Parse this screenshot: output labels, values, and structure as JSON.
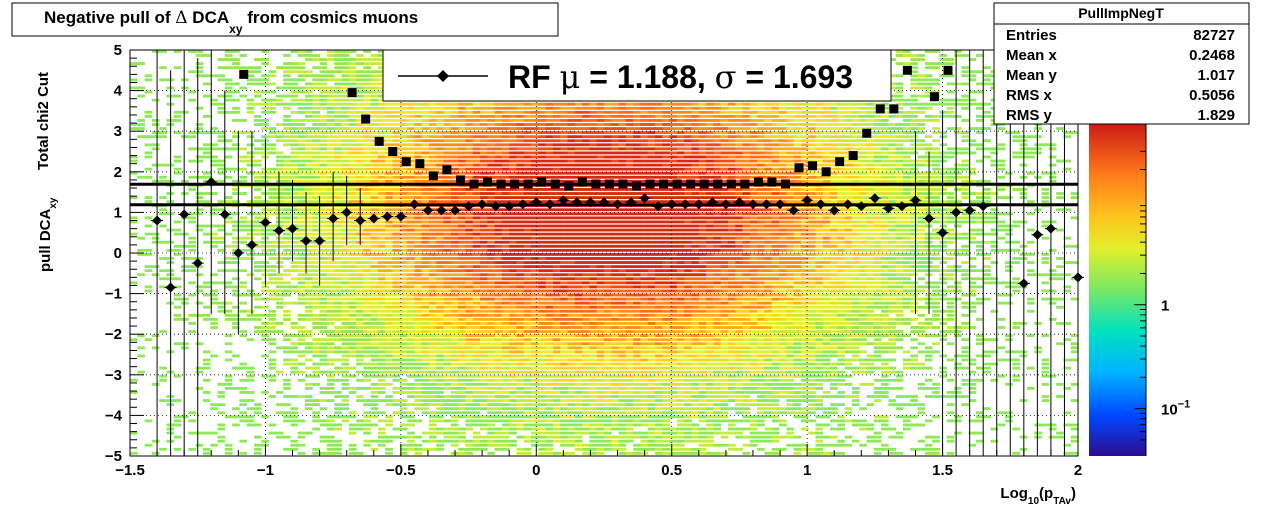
{
  "chart_data": {
    "type": "heatmap",
    "title_main": "Negative pull of ",
    "title_delta": "Δ",
    "title_dca": " DCA",
    "title_sub": "xy",
    "title_tail": " from cosmics muons",
    "xlabel_main": "Log",
    "xlabel_sub1": "10",
    "xlabel_paren": "(p",
    "xlabel_sub2": "TAv",
    "xlabel_close": ")",
    "ylabel_line1": "Total chi2 Cut",
    "ylabel_line2_main": "pull DCA",
    "ylabel_line2_sub": "xy",
    "xlim": [
      -1.5,
      2.0
    ],
    "ylim": [
      -5,
      5
    ],
    "x_ticks": [
      -1.5,
      -1,
      -0.5,
      0,
      0.5,
      1,
      1.5,
      2
    ],
    "x_tick_labels": [
      "−1.5",
      "−1",
      "−0.5",
      "0",
      "0.5",
      "1",
      "1.5",
      "2"
    ],
    "y_ticks": [
      -5,
      -4,
      -3,
      -2,
      -1,
      0,
      1,
      2,
      3,
      4,
      5
    ],
    "y_tick_labels": [
      "−5",
      "−4",
      "−3",
      "−2",
      "−1",
      "0",
      "1",
      "2",
      "3",
      "4",
      "5"
    ],
    "grid": true,
    "z_scale": "log",
    "colorbar_labels": [
      {
        "value": 1,
        "main": "1",
        "sup": ""
      },
      {
        "value": 0.1,
        "main": "10",
        "sup": "−1"
      }
    ],
    "stats_box": {
      "title": "PullImpNegT",
      "rows": [
        {
          "label": "Entries",
          "value": "82727"
        },
        {
          "label": "Mean x",
          "value": "0.2468"
        },
        {
          "label": "Mean y",
          "value": "1.017"
        },
        {
          "label": "RMS x",
          "value": "0.5056"
        },
        {
          "label": "RMS y",
          "value": "1.829"
        }
      ]
    },
    "legend": {
      "text_prefix": "RF ",
      "mu_symbol": "μ",
      "mu_text": " =  1.188, ",
      "sigma_symbol": "σ",
      "sigma_text": " =   1.693",
      "placement": "top-center"
    },
    "fit_lines": [
      {
        "label": "μ",
        "y": 1.188
      },
      {
        "label": "σ",
        "y": 1.693
      }
    ],
    "heatmap_peak": {
      "x": 0.25,
      "y": 1.0
    },
    "series": [
      {
        "marker": "diamond",
        "x": [
          -1.4,
          -1.35,
          -1.3,
          -1.25,
          -1.2,
          -1.15,
          -1.1,
          -1.05,
          -1.0,
          -0.95,
          -0.9,
          -0.85,
          -0.8,
          -0.75,
          -0.7,
          -0.65,
          -0.6,
          -0.55,
          -0.5,
          -0.45,
          -0.4,
          -0.35,
          -0.3,
          -0.25,
          -0.2,
          -0.15,
          -0.1,
          -0.05,
          0.0,
          0.05,
          0.1,
          0.15,
          0.2,
          0.25,
          0.3,
          0.35,
          0.4,
          0.45,
          0.5,
          0.55,
          0.6,
          0.65,
          0.7,
          0.75,
          0.8,
          0.85,
          0.9,
          0.95,
          1.0,
          1.05,
          1.1,
          1.15,
          1.2,
          1.25,
          1.3,
          1.35,
          1.4,
          1.45,
          1.5,
          1.55,
          1.6,
          1.65,
          1.7,
          1.75,
          1.8,
          1.85,
          1.9,
          1.95,
          2.0
        ],
        "values": [
          0.8,
          -0.85,
          0.95,
          -0.25,
          1.75,
          0.95,
          0.0,
          0.2,
          0.75,
          0.55,
          0.6,
          0.3,
          0.3,
          0.85,
          1.0,
          0.8,
          0.85,
          0.9,
          0.9,
          1.2,
          1.05,
          1.05,
          1.05,
          1.15,
          1.2,
          1.15,
          1.15,
          1.2,
          1.25,
          1.2,
          1.3,
          1.25,
          1.25,
          1.25,
          1.2,
          1.25,
          1.35,
          1.15,
          1.2,
          1.2,
          1.2,
          1.25,
          1.2,
          1.25,
          1.2,
          1.2,
          1.2,
          1.05,
          1.3,
          1.2,
          1.05,
          1.2,
          1.15,
          1.35,
          1.1,
          1.15,
          1.3,
          0.85,
          0.5,
          1.0,
          1.05,
          1.15,
          null,
          null,
          -0.75,
          0.45,
          0.6,
          null,
          -0.6
        ]
      },
      {
        "marker": "square",
        "x": [
          -1.08,
          -0.68,
          -0.63,
          -0.58,
          -0.53,
          -0.48,
          -0.43,
          -0.38,
          -0.33,
          -0.28,
          -0.23,
          -0.18,
          -0.13,
          -0.08,
          -0.03,
          0.02,
          0.07,
          0.12,
          0.17,
          0.22,
          0.27,
          0.32,
          0.37,
          0.42,
          0.47,
          0.52,
          0.57,
          0.62,
          0.67,
          0.72,
          0.77,
          0.82,
          0.87,
          0.92,
          0.97,
          1.02,
          1.07,
          1.12,
          1.17,
          1.22,
          1.27,
          1.32,
          1.37,
          1.42,
          1.47,
          1.52,
          1.57,
          1.62,
          1.67
        ],
        "values": [
          4.4,
          3.95,
          3.3,
          2.75,
          2.5,
          2.25,
          2.2,
          1.9,
          2.05,
          1.8,
          1.7,
          1.75,
          1.7,
          1.7,
          1.7,
          1.75,
          1.7,
          1.65,
          1.75,
          1.7,
          1.7,
          1.7,
          1.65,
          1.7,
          1.7,
          1.7,
          1.7,
          1.7,
          1.7,
          1.7,
          1.7,
          1.75,
          1.75,
          1.7,
          2.1,
          2.15,
          2.0,
          2.25,
          2.4,
          2.95,
          3.55,
          3.55,
          4.5,
          null,
          3.85,
          4.5,
          null,
          null,
          null
        ]
      }
    ],
    "error_bars": [
      {
        "x": -1.4,
        "low": -5,
        "high": 5
      },
      {
        "x": -1.35,
        "low": -5,
        "high": 4.5
      },
      {
        "x": -1.3,
        "low": -5,
        "high": 5
      },
      {
        "x": -1.25,
        "low": -5,
        "high": 4.8
      },
      {
        "x": -1.2,
        "low": -1.5,
        "high": 5
      },
      {
        "x": -1.15,
        "low": -1.5,
        "high": 4.0
      },
      {
        "x": -1.1,
        "low": -2.0,
        "high": 3.0
      },
      {
        "x": -1.05,
        "low": -1.5,
        "high": 3.0
      },
      {
        "x": -1.0,
        "low": -0.8,
        "high": 2.8
      },
      {
        "x": -0.95,
        "low": -0.5,
        "high": 2.0
      },
      {
        "x": -0.9,
        "low": -0.2,
        "high": 1.8
      },
      {
        "x": -0.85,
        "low": -0.5,
        "high": 1.5
      },
      {
        "x": -0.8,
        "low": -0.8,
        "high": 1.4
      },
      {
        "x": -0.75,
        "low": -0.2,
        "high": 2.0
      },
      {
        "x": -0.7,
        "low": 0.2,
        "high": 1.9
      },
      {
        "x": -0.65,
        "low": 0.2,
        "high": 1.6
      },
      {
        "x": 1.4,
        "low": -1.5,
        "high": 3.0
      },
      {
        "x": 1.45,
        "low": -1.5,
        "high": 2.5
      },
      {
        "x": 1.5,
        "low": -5,
        "high": 3.5
      },
      {
        "x": 1.55,
        "low": -5,
        "high": 5
      },
      {
        "x": 1.6,
        "low": -5,
        "high": 5
      },
      {
        "x": 1.65,
        "low": -5,
        "high": 5
      },
      {
        "x": 1.7,
        "low": -5,
        "high": 5
      },
      {
        "x": 1.75,
        "low": -5,
        "high": 5
      },
      {
        "x": 1.8,
        "low": -5,
        "high": 5
      },
      {
        "x": 1.85,
        "low": -5,
        "high": 5
      },
      {
        "x": 1.9,
        "low": -5,
        "high": 5
      },
      {
        "x": 1.95,
        "low": -5,
        "high": 5
      }
    ]
  }
}
